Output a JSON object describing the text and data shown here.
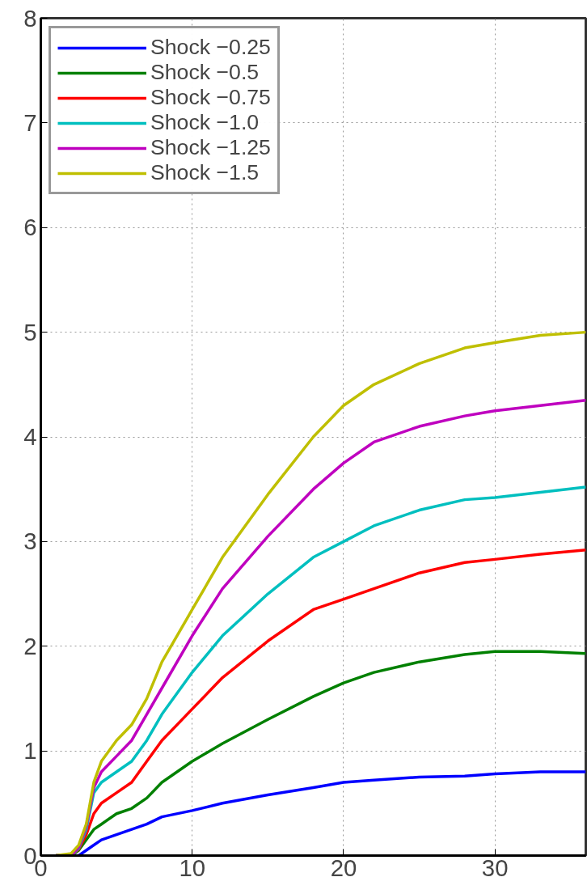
{
  "chart_data": {
    "type": "line",
    "x": [
      1,
      2,
      2.5,
      3,
      3.5,
      4,
      5,
      6,
      7,
      8,
      10,
      12,
      15,
      18,
      20,
      22,
      25,
      28,
      30,
      33,
      36
    ],
    "series": [
      {
        "name": "Shock −0.25",
        "color": "#0000ff",
        "values": [
          0,
          0,
          0,
          0.05,
          0.1,
          0.15,
          0.2,
          0.25,
          0.3,
          0.37,
          0.43,
          0.5,
          0.58,
          0.65,
          0.7,
          0.72,
          0.75,
          0.76,
          0.78,
          0.8,
          0.8
        ]
      },
      {
        "name": "Shock −0.5",
        "color": "#008000",
        "values": [
          0,
          0,
          0.05,
          0.15,
          0.25,
          0.3,
          0.4,
          0.45,
          0.55,
          0.7,
          0.9,
          1.07,
          1.3,
          1.52,
          1.65,
          1.75,
          1.85,
          1.92,
          1.95,
          1.95,
          1.93
        ]
      },
      {
        "name": "Shock −0.75",
        "color": "#ff0000",
        "values": [
          0,
          0,
          0.06,
          0.2,
          0.4,
          0.5,
          0.6,
          0.7,
          0.9,
          1.1,
          1.4,
          1.7,
          2.05,
          2.35,
          2.45,
          2.55,
          2.7,
          2.8,
          2.83,
          2.88,
          2.92
        ]
      },
      {
        "name": "Shock −1.0",
        "color": "#00bfbf",
        "values": [
          0,
          0,
          0.07,
          0.25,
          0.6,
          0.7,
          0.8,
          0.9,
          1.1,
          1.35,
          1.75,
          2.1,
          2.5,
          2.85,
          3.0,
          3.15,
          3.3,
          3.4,
          3.42,
          3.47,
          3.52
        ]
      },
      {
        "name": "Shock −1.25",
        "color": "#bf00bf",
        "values": [
          0,
          0,
          0.08,
          0.28,
          0.65,
          0.8,
          0.95,
          1.1,
          1.35,
          1.6,
          2.1,
          2.55,
          3.05,
          3.5,
          3.75,
          3.95,
          4.1,
          4.2,
          4.25,
          4.3,
          4.35
        ]
      },
      {
        "name": "Shock −1.5",
        "color": "#bfbf00",
        "values": [
          0,
          0.02,
          0.1,
          0.3,
          0.7,
          0.9,
          1.1,
          1.25,
          1.5,
          1.85,
          2.35,
          2.85,
          3.45,
          4.0,
          4.3,
          4.5,
          4.7,
          4.85,
          4.9,
          4.97,
          5.0
        ]
      }
    ],
    "xlim": [
      0,
      36
    ],
    "ylim": [
      0,
      8
    ],
    "xticks": [
      0,
      10,
      20,
      30
    ],
    "yticks": [
      0,
      1,
      2,
      3,
      4,
      5,
      6,
      7,
      8
    ],
    "grid": true,
    "legend": "top left",
    "line_style": "solid",
    "marker": "none"
  }
}
